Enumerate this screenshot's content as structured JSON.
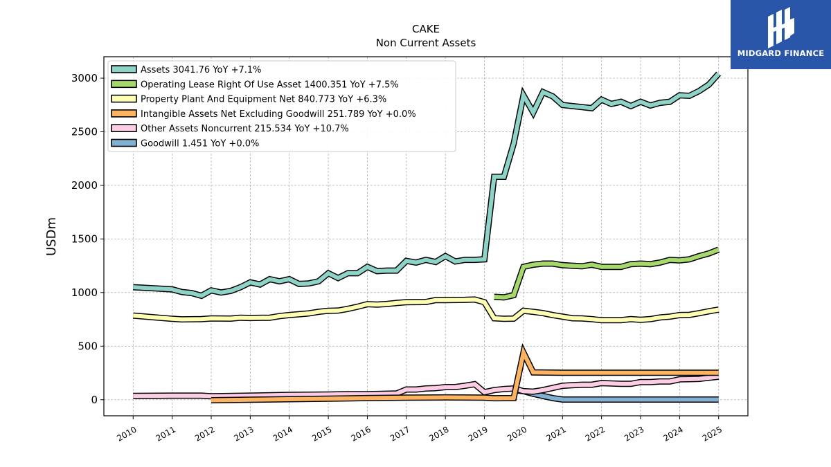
{
  "brand": {
    "logo_text": "MIDGARD FINANCE",
    "logo_icon": "midgard-logo-icon",
    "bg_color": "#2956a8"
  },
  "chart_data": {
    "type": "line",
    "title": "CAKE",
    "subtitle": "Non Current  Assets",
    "xlabel": "",
    "ylabel": "USDm",
    "x_ticks": [
      "2010",
      "2011",
      "2012",
      "2013",
      "2014",
      "2015",
      "2016",
      "2017",
      "2018",
      "2019",
      "2020",
      "2021",
      "2022",
      "2023",
      "2024",
      "2025"
    ],
    "y_ticks": [
      "0",
      "500",
      "1000",
      "1500",
      "2000",
      "2500",
      "3000"
    ],
    "xlim": [
      2009.25,
      2025.75
    ],
    "ylim": [
      -150,
      3200
    ],
    "grid": true,
    "legend_position": "top-left",
    "series": [
      {
        "name": "Assets",
        "legend": "Assets  3041.76 YoY +7.1%",
        "color": "#8dd3c7",
        "points": [
          [
            2010.0,
            1050
          ],
          [
            2010.5,
            1040
          ],
          [
            2011.0,
            1030
          ],
          [
            2011.25,
            1005
          ],
          [
            2011.5,
            995
          ],
          [
            2011.75,
            970
          ],
          [
            2012.0,
            1020
          ],
          [
            2012.25,
            1000
          ],
          [
            2012.5,
            1015
          ],
          [
            2012.75,
            1050
          ],
          [
            2013.0,
            1095
          ],
          [
            2013.25,
            1075
          ],
          [
            2013.5,
            1125
          ],
          [
            2013.75,
            1105
          ],
          [
            2014.0,
            1125
          ],
          [
            2014.25,
            1080
          ],
          [
            2014.5,
            1085
          ],
          [
            2014.75,
            1105
          ],
          [
            2015.0,
            1180
          ],
          [
            2015.25,
            1135
          ],
          [
            2015.5,
            1180
          ],
          [
            2015.75,
            1180
          ],
          [
            2016.0,
            1240
          ],
          [
            2016.25,
            1200
          ],
          [
            2016.5,
            1205
          ],
          [
            2016.75,
            1205
          ],
          [
            2017.0,
            1295
          ],
          [
            2017.25,
            1280
          ],
          [
            2017.5,
            1305
          ],
          [
            2017.75,
            1285
          ],
          [
            2018.0,
            1340
          ],
          [
            2018.25,
            1290
          ],
          [
            2018.5,
            1305
          ],
          [
            2018.75,
            1305
          ],
          [
            2019.0,
            1310
          ],
          [
            2019.25,
            2080
          ],
          [
            2019.5,
            2080
          ],
          [
            2019.75,
            2390
          ],
          [
            2020.0,
            2840
          ],
          [
            2020.25,
            2680
          ],
          [
            2020.5,
            2870
          ],
          [
            2020.75,
            2830
          ],
          [
            2021.0,
            2750
          ],
          [
            2021.25,
            2740
          ],
          [
            2021.5,
            2730
          ],
          [
            2021.75,
            2720
          ],
          [
            2022.0,
            2800
          ],
          [
            2022.25,
            2760
          ],
          [
            2022.5,
            2780
          ],
          [
            2022.75,
            2740
          ],
          [
            2023.0,
            2780
          ],
          [
            2023.25,
            2745
          ],
          [
            2023.5,
            2770
          ],
          [
            2023.75,
            2780
          ],
          [
            2024.0,
            2840
          ],
          [
            2024.25,
            2835
          ],
          [
            2024.5,
            2880
          ],
          [
            2024.75,
            2940
          ],
          [
            2025.0,
            3041.76
          ]
        ]
      },
      {
        "name": "Operating Lease Right Of Use Asset",
        "legend": "Operating Lease Right Of Use Asset  1400.351 YoY +7.5%",
        "color": "#a6d86b",
        "points": [
          [
            2019.25,
            960
          ],
          [
            2019.5,
            955
          ],
          [
            2019.75,
            975
          ],
          [
            2020.0,
            1240
          ],
          [
            2020.25,
            1260
          ],
          [
            2020.5,
            1270
          ],
          [
            2020.75,
            1270
          ],
          [
            2021.0,
            1255
          ],
          [
            2021.25,
            1250
          ],
          [
            2021.5,
            1245
          ],
          [
            2021.75,
            1260
          ],
          [
            2022.0,
            1240
          ],
          [
            2022.25,
            1240
          ],
          [
            2022.5,
            1240
          ],
          [
            2022.75,
            1265
          ],
          [
            2023.0,
            1270
          ],
          [
            2023.25,
            1265
          ],
          [
            2023.5,
            1280
          ],
          [
            2023.75,
            1305
          ],
          [
            2024.0,
            1300
          ],
          [
            2024.25,
            1310
          ],
          [
            2024.5,
            1340
          ],
          [
            2024.75,
            1365
          ],
          [
            2025.0,
            1400.351
          ]
        ]
      },
      {
        "name": "Property Plant And Equipment Net",
        "legend": "Property Plant And Equipment Net  840.773 YoY +6.3%",
        "color": "#ffffb3",
        "points": [
          [
            2010.0,
            785
          ],
          [
            2010.5,
            770
          ],
          [
            2011.0,
            755
          ],
          [
            2011.25,
            750
          ],
          [
            2011.75,
            752
          ],
          [
            2012.0,
            758
          ],
          [
            2012.5,
            757
          ],
          [
            2012.75,
            765
          ],
          [
            2013.0,
            763
          ],
          [
            2013.5,
            765
          ],
          [
            2013.75,
            780
          ],
          [
            2014.0,
            790
          ],
          [
            2014.5,
            805
          ],
          [
            2014.75,
            820
          ],
          [
            2015.0,
            830
          ],
          [
            2015.25,
            832
          ],
          [
            2015.5,
            848
          ],
          [
            2015.75,
            868
          ],
          [
            2016.0,
            892
          ],
          [
            2016.25,
            888
          ],
          [
            2016.5,
            893
          ],
          [
            2016.75,
            903
          ],
          [
            2017.0,
            910
          ],
          [
            2017.5,
            912
          ],
          [
            2017.75,
            930
          ],
          [
            2018.0,
            930
          ],
          [
            2018.5,
            932
          ],
          [
            2018.75,
            935
          ],
          [
            2019.0,
            910
          ],
          [
            2019.25,
            760
          ],
          [
            2019.5,
            755
          ],
          [
            2019.75,
            757
          ],
          [
            2020.0,
            830
          ],
          [
            2020.25,
            820
          ],
          [
            2020.5,
            808
          ],
          [
            2020.75,
            790
          ],
          [
            2021.0,
            775
          ],
          [
            2021.25,
            760
          ],
          [
            2021.5,
            758
          ],
          [
            2021.75,
            752
          ],
          [
            2022.0,
            742
          ],
          [
            2022.25,
            742
          ],
          [
            2022.5,
            743
          ],
          [
            2022.75,
            752
          ],
          [
            2023.0,
            745
          ],
          [
            2023.25,
            752
          ],
          [
            2023.5,
            768
          ],
          [
            2023.75,
            775
          ],
          [
            2024.0,
            790
          ],
          [
            2024.25,
            792
          ],
          [
            2024.5,
            807
          ],
          [
            2024.75,
            825
          ],
          [
            2025.0,
            840.773
          ]
        ]
      },
      {
        "name": "Intangible Assets Net Excluding Goodwill",
        "legend": "Intangible Assets Net Excluding Goodwill  251.789 YoY +0.0%",
        "color": "#fdb462",
        "points": [
          [
            2012.0,
            -5
          ],
          [
            2013.0,
            0
          ],
          [
            2014.0,
            5
          ],
          [
            2015.0,
            10
          ],
          [
            2016.0,
            15
          ],
          [
            2017.0,
            20
          ],
          [
            2018.0,
            22
          ],
          [
            2019.0,
            20
          ],
          [
            2019.25,
            14
          ],
          [
            2019.75,
            15
          ],
          [
            2020.0,
            440
          ],
          [
            2020.25,
            255
          ],
          [
            2021.0,
            252
          ],
          [
            2022.0,
            252
          ],
          [
            2023.0,
            252
          ],
          [
            2024.0,
            252
          ],
          [
            2025.0,
            251.789
          ]
        ]
      },
      {
        "name": "Other Assets Noncurrent",
        "legend": "Other Assets Noncurrent  215.534 YoY +10.7%",
        "color": "#fccde5",
        "points": [
          [
            2010.0,
            35
          ],
          [
            2011.0,
            38
          ],
          [
            2011.75,
            38
          ],
          [
            2012.0,
            32
          ],
          [
            2013.0,
            38
          ],
          [
            2014.0,
            45
          ],
          [
            2015.0,
            48
          ],
          [
            2015.5,
            52
          ],
          [
            2016.0,
            52
          ],
          [
            2016.75,
            58
          ],
          [
            2017.0,
            95
          ],
          [
            2017.25,
            95
          ],
          [
            2017.5,
            105
          ],
          [
            2017.75,
            108
          ],
          [
            2018.0,
            118
          ],
          [
            2018.25,
            118
          ],
          [
            2018.5,
            130
          ],
          [
            2018.75,
            145
          ],
          [
            2019.0,
            70
          ],
          [
            2019.25,
            90
          ],
          [
            2019.5,
            100
          ],
          [
            2019.75,
            105
          ],
          [
            2020.0,
            80
          ],
          [
            2020.25,
            75
          ],
          [
            2020.5,
            90
          ],
          [
            2020.75,
            110
          ],
          [
            2021.0,
            130
          ],
          [
            2021.25,
            135
          ],
          [
            2021.5,
            140
          ],
          [
            2021.75,
            140
          ],
          [
            2022.0,
            155
          ],
          [
            2022.25,
            152
          ],
          [
            2022.5,
            148
          ],
          [
            2022.75,
            148
          ],
          [
            2023.0,
            165
          ],
          [
            2023.25,
            165
          ],
          [
            2023.5,
            170
          ],
          [
            2023.75,
            170
          ],
          [
            2024.0,
            190
          ],
          [
            2024.25,
            192
          ],
          [
            2024.5,
            195
          ],
          [
            2024.75,
            205
          ],
          [
            2025.0,
            215.534
          ]
        ]
      },
      {
        "name": "Goodwill",
        "legend": "Goodwill  1.451 YoY +0.0%",
        "color": "#80b1d3",
        "points": [
          [
            2019.75,
            90
          ],
          [
            2020.0,
            80
          ],
          [
            2020.25,
            55
          ],
          [
            2020.5,
            35
          ],
          [
            2020.75,
            15
          ],
          [
            2021.0,
            1.451
          ],
          [
            2022.0,
            1.451
          ],
          [
            2023.0,
            1.451
          ],
          [
            2024.0,
            1.451
          ],
          [
            2025.0,
            1.451
          ]
        ]
      }
    ]
  }
}
